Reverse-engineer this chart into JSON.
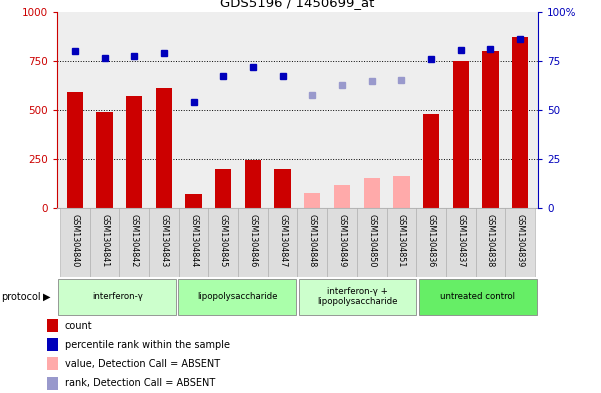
{
  "title": "GDS5196 / 1450699_at",
  "samples": [
    "GSM1304840",
    "GSM1304841",
    "GSM1304842",
    "GSM1304843",
    "GSM1304844",
    "GSM1304845",
    "GSM1304846",
    "GSM1304847",
    "GSM1304848",
    "GSM1304849",
    "GSM1304850",
    "GSM1304851",
    "GSM1304836",
    "GSM1304837",
    "GSM1304838",
    "GSM1304839"
  ],
  "bar_values": [
    590,
    490,
    570,
    610,
    75,
    200,
    245,
    200,
    80,
    120,
    155,
    165,
    480,
    750,
    800,
    870
  ],
  "bar_colors": [
    "#cc0000",
    "#cc0000",
    "#cc0000",
    "#cc0000",
    "#cc0000",
    "#cc0000",
    "#cc0000",
    "#cc0000",
    "#ffaaaa",
    "#ffaaaa",
    "#ffaaaa",
    "#ffaaaa",
    "#cc0000",
    "#cc0000",
    "#cc0000",
    "#cc0000"
  ],
  "dot_values": [
    80,
    76.5,
    77.5,
    79,
    54,
    67.5,
    72,
    67.5,
    57.5,
    62.5,
    65,
    65.5,
    76,
    80.5,
    81,
    86
  ],
  "dot_colors": [
    "#0000bb",
    "#0000bb",
    "#0000bb",
    "#0000bb",
    "#0000bb",
    "#0000bb",
    "#0000bb",
    "#0000bb",
    "#9999cc",
    "#9999cc",
    "#9999cc",
    "#9999cc",
    "#0000bb",
    "#0000bb",
    "#0000bb",
    "#0000bb"
  ],
  "protocols": [
    {
      "label": "interferon-γ",
      "start": 0,
      "end": 4,
      "color": "#ccffcc"
    },
    {
      "label": "lipopolysaccharide",
      "start": 4,
      "end": 8,
      "color": "#aaffaa"
    },
    {
      "label": "interferon-γ +\nlipopolysaccharide",
      "start": 8,
      "end": 12,
      "color": "#ccffcc"
    },
    {
      "label": "untreated control",
      "start": 12,
      "end": 16,
      "color": "#66ee66"
    }
  ],
  "ylim_left": [
    0,
    1000
  ],
  "ylim_right": [
    0,
    100
  ],
  "yticks_left": [
    0,
    250,
    500,
    750,
    1000
  ],
  "yticks_right": [
    0,
    25,
    50,
    75,
    100
  ],
  "ytick_labels_right": [
    "0",
    "25",
    "50",
    "75",
    "100%"
  ],
  "left_axis_color": "#cc0000",
  "right_axis_color": "#0000bb",
  "plot_bg_color": "#eeeeee",
  "legend_items": [
    {
      "label": "count",
      "color": "#cc0000"
    },
    {
      "label": "percentile rank within the sample",
      "color": "#0000bb"
    },
    {
      "label": "value, Detection Call = ABSENT",
      "color": "#ffaaaa"
    },
    {
      "label": "rank, Detection Call = ABSENT",
      "color": "#9999cc"
    }
  ]
}
